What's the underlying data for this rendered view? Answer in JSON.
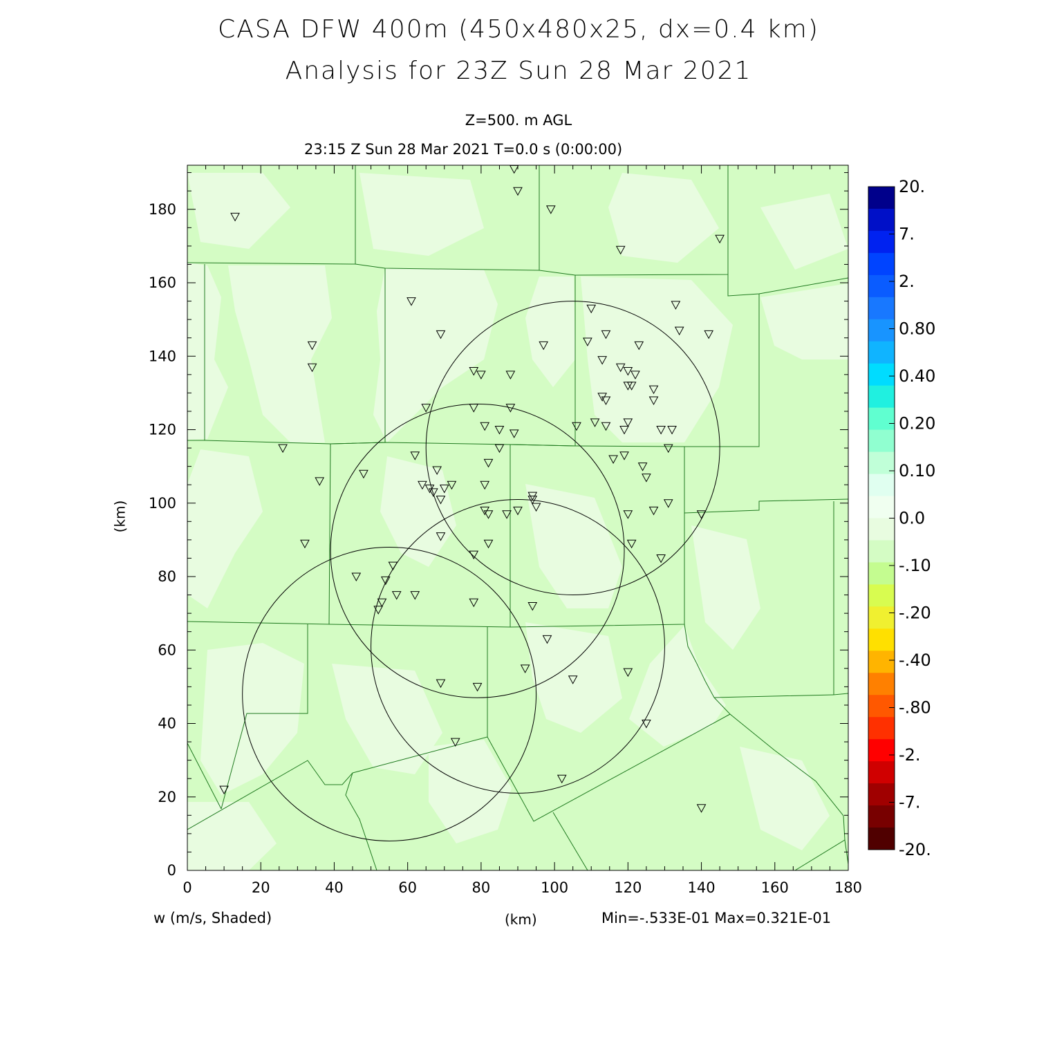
{
  "title_line1": "CASA DFW 400m (450x480x25, dx=0.4 km)",
  "title_line2": "Analysis for 23Z Sun 28 Mar 2021",
  "level": "Z=500. m AGL",
  "valid_time": "23:15 Z Sun 28 Mar 2021    T=0.0 s (0:00:00)",
  "y_axis_label": "(km)",
  "x_axis_label": "(km)",
  "field_label": "w (m/s, Shaded)",
  "min_max": "Min=-.533E-01 Max=0.321E-01",
  "axes": {
    "x_range": [
      0,
      180
    ],
    "y_range": [
      0,
      192
    ],
    "x_ticks": [
      "0",
      "20",
      "40",
      "60",
      "80",
      "100",
      "120",
      "140",
      "160",
      "180"
    ],
    "y_ticks": [
      "0",
      "20",
      "40",
      "60",
      "80",
      "100",
      "120",
      "140",
      "160",
      "180"
    ]
  },
  "colorbar": {
    "labels": [
      "20.",
      "7.",
      "2.",
      "0.80",
      "0.40",
      "0.20",
      "0.10",
      "0.0",
      "-.10",
      "-.20",
      "-.40",
      "-.80",
      "-2.",
      "-7.",
      "-20."
    ],
    "colors": [
      "#00008b",
      "#0010c8",
      "#0022f0",
      "#0044ff",
      "#0a5cff",
      "#1878ff",
      "#1894ff",
      "#10b4ff",
      "#00dcff",
      "#20f0e0",
      "#60ffd0",
      "#90ffd0",
      "#c0ffd8",
      "#e0fff0",
      "#f0fff0",
      "#e8fce0",
      "#d4fcc4",
      "#c4fc90",
      "#d8fc50",
      "#f0f030",
      "#ffe000",
      "#ffb400",
      "#ff8000",
      "#ff5800",
      "#ff3000",
      "#ff0000",
      "#d00000",
      "#a00000",
      "#780000",
      "#500000"
    ]
  },
  "field_colors": {
    "background": "#d4fcc4",
    "light_patch": "#e8fce0"
  },
  "radar_circles": [
    {
      "x": 105,
      "y": 115,
      "r": 40
    },
    {
      "x": 79,
      "y": 87,
      "r": 40
    },
    {
      "x": 90,
      "y": 61,
      "r": 40
    },
    {
      "x": 55,
      "y": 48,
      "r": 40
    }
  ],
  "stations": [
    [
      13,
      178
    ],
    [
      89,
      191
    ],
    [
      90,
      185
    ],
    [
      99,
      180
    ],
    [
      118,
      169
    ],
    [
      145,
      172
    ],
    [
      61,
      155
    ],
    [
      110,
      153
    ],
    [
      133,
      154
    ],
    [
      34,
      143
    ],
    [
      34,
      137
    ],
    [
      69,
      146
    ],
    [
      97,
      143
    ],
    [
      114,
      146
    ],
    [
      109,
      144
    ],
    [
      123,
      143
    ],
    [
      134,
      147
    ],
    [
      142,
      146
    ],
    [
      113,
      139
    ],
    [
      118,
      137
    ],
    [
      120,
      136
    ],
    [
      122,
      135
    ],
    [
      78,
      136
    ],
    [
      80,
      135
    ],
    [
      88,
      135
    ],
    [
      121,
      132
    ],
    [
      120,
      132
    ],
    [
      127,
      131
    ],
    [
      113,
      129
    ],
    [
      114,
      128
    ],
    [
      127,
      128
    ],
    [
      65,
      126
    ],
    [
      78,
      126
    ],
    [
      88,
      126
    ],
    [
      81,
      121
    ],
    [
      85,
      120
    ],
    [
      89,
      119
    ],
    [
      106,
      121
    ],
    [
      111,
      122
    ],
    [
      114,
      121
    ],
    [
      119,
      120
    ],
    [
      120,
      122
    ],
    [
      129,
      120
    ],
    [
      132,
      120
    ],
    [
      26,
      115
    ],
    [
      62,
      113
    ],
    [
      68,
      109
    ],
    [
      85,
      115
    ],
    [
      82,
      111
    ],
    [
      116,
      112
    ],
    [
      119,
      113
    ],
    [
      124,
      110
    ],
    [
      125,
      107
    ],
    [
      131,
      115
    ],
    [
      36,
      106
    ],
    [
      48,
      108
    ],
    [
      64,
      105
    ],
    [
      66,
      104
    ],
    [
      67,
      103
    ],
    [
      70,
      104
    ],
    [
      72,
      105
    ],
    [
      69,
      101
    ],
    [
      81,
      105
    ],
    [
      94,
      102
    ],
    [
      94,
      101
    ],
    [
      95,
      99
    ],
    [
      81,
      98
    ],
    [
      82,
      97
    ],
    [
      87,
      97
    ],
    [
      90,
      98
    ],
    [
      120,
      97
    ],
    [
      127,
      98
    ],
    [
      131,
      100
    ],
    [
      140,
      97
    ],
    [
      32,
      89
    ],
    [
      69,
      91
    ],
    [
      78,
      86
    ],
    [
      82,
      89
    ],
    [
      121,
      89
    ],
    [
      129,
      85
    ],
    [
      46,
      80
    ],
    [
      56,
      83
    ],
    [
      54,
      79
    ],
    [
      57,
      75
    ],
    [
      62,
      75
    ],
    [
      53,
      73
    ],
    [
      52,
      71
    ],
    [
      78,
      73
    ],
    [
      94,
      72
    ],
    [
      98,
      63
    ],
    [
      92,
      55
    ],
    [
      105,
      52
    ],
    [
      120,
      54
    ],
    [
      69,
      51
    ],
    [
      79,
      50
    ],
    [
      125,
      40
    ],
    [
      73,
      35
    ],
    [
      10,
      22
    ],
    [
      102,
      25
    ],
    [
      140,
      17
    ]
  ]
}
